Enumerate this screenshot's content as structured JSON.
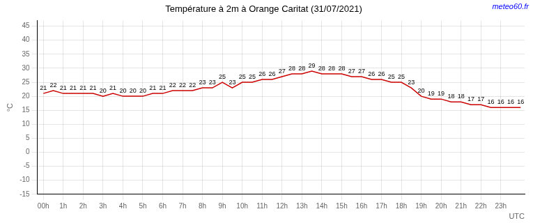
{
  "chart_data": {
    "type": "line",
    "title": "Température à 2m à Orange Caritat (31/07/2021)",
    "xlabel": "UTC",
    "ylabel": "°C",
    "annotations": [
      "meteo60.fr"
    ],
    "x": [
      0,
      0.5,
      1,
      1.5,
      2,
      2.5,
      3,
      3.5,
      4,
      4.5,
      5,
      5.5,
      6,
      6.5,
      7,
      7.5,
      8,
      8.5,
      9,
      9.5,
      10,
      10.5,
      11,
      11.5,
      12,
      12.5,
      13,
      13.5,
      14,
      14.5,
      15,
      15.5,
      16,
      16.5,
      17,
      17.5,
      18,
      18.5,
      19,
      19.5,
      20,
      20.5,
      21,
      21.5,
      22,
      22.5,
      23,
      23.5,
      24
    ],
    "values": [
      21,
      22,
      21,
      21,
      21,
      21,
      20,
      21,
      20,
      20,
      20,
      21,
      21,
      22,
      22,
      22,
      23,
      23,
      25,
      23,
      25,
      25,
      26,
      26,
      27,
      28,
      28,
      29,
      28,
      28,
      28,
      27,
      27,
      26,
      26,
      25,
      25,
      23,
      20,
      19,
      19,
      18,
      18,
      17,
      17,
      16,
      16,
      16,
      16
    ],
    "color": "#cc0000",
    "xlim": [
      -0.3,
      24.2
    ],
    "xticks": [
      {
        "value": 0,
        "label": "00h"
      },
      {
        "value": 1,
        "label": "1h"
      },
      {
        "value": 2,
        "label": "2h"
      },
      {
        "value": 3,
        "label": "3h"
      },
      {
        "value": 4,
        "label": "4h"
      },
      {
        "value": 5,
        "label": "5h"
      },
      {
        "value": 6,
        "label": "6h"
      },
      {
        "value": 7,
        "label": "7h"
      },
      {
        "value": 8,
        "label": "8h"
      },
      {
        "value": 9,
        "label": "9h"
      },
      {
        "value": 10,
        "label": "10h"
      },
      {
        "value": 11,
        "label": "11h"
      },
      {
        "value": 12,
        "label": "12h"
      },
      {
        "value": 13,
        "label": "13h"
      },
      {
        "value": 14,
        "label": "14h"
      },
      {
        "value": 15,
        "label": "15h"
      },
      {
        "value": 16,
        "label": "16h"
      },
      {
        "value": 17,
        "label": "17h"
      },
      {
        "value": 18,
        "label": "18h"
      },
      {
        "value": 19,
        "label": "19h"
      },
      {
        "value": 20,
        "label": "20h"
      },
      {
        "value": 21,
        "label": "21h"
      },
      {
        "value": 22,
        "label": "22h"
      },
      {
        "value": 23,
        "label": "23h"
      }
    ],
    "ylim": [
      -15,
      47
    ],
    "yticks": [
      -15,
      -10,
      -5,
      0,
      5,
      10,
      15,
      20,
      25,
      30,
      35,
      40,
      45
    ],
    "grid": true,
    "data_labels": true
  }
}
